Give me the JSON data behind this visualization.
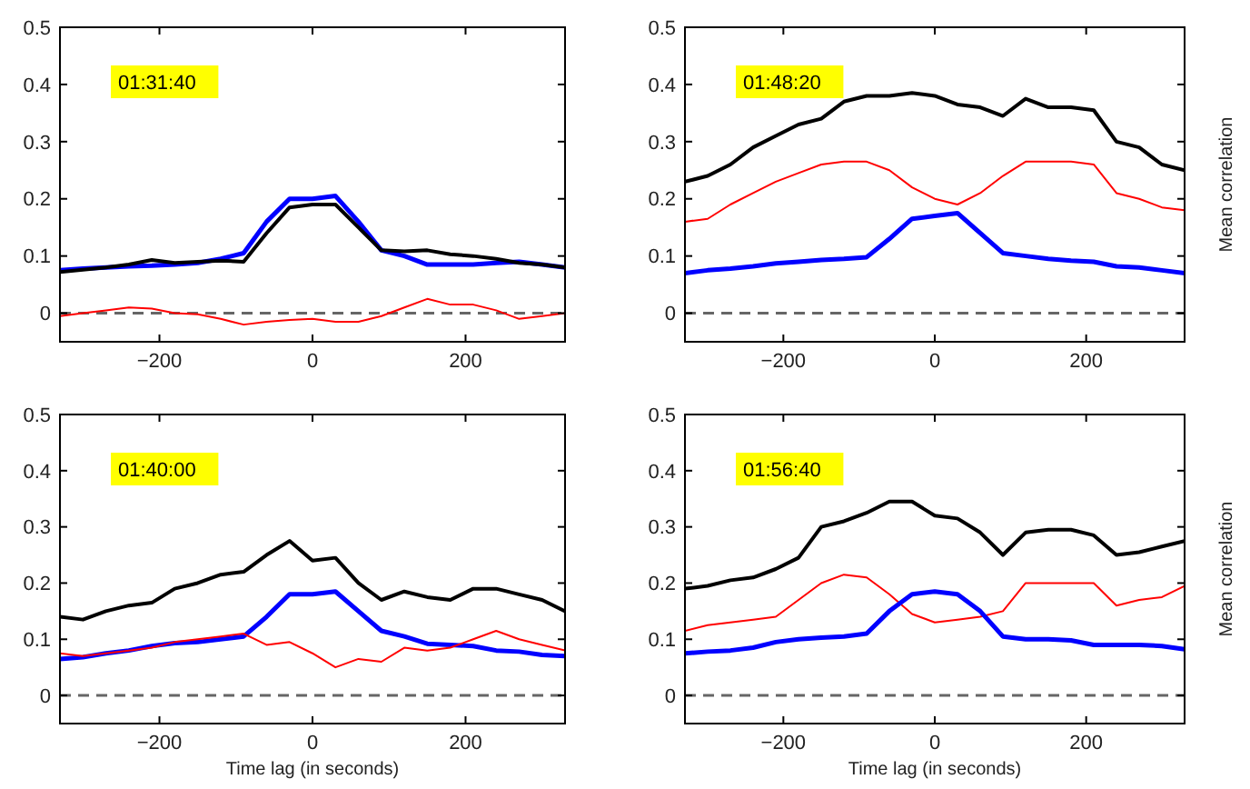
{
  "chart_data": [
    {
      "type": "line",
      "annotations": [
        "01:31:40"
      ],
      "x": [
        -330,
        -300,
        -270,
        -240,
        -210,
        -180,
        -150,
        -120,
        -90,
        -60,
        -30,
        0,
        30,
        60,
        90,
        120,
        150,
        180,
        210,
        240,
        270,
        300,
        330
      ],
      "xlim": [
        -330,
        330
      ],
      "ylim": [
        -0.05,
        0.5
      ],
      "xticks": [
        -200,
        0,
        200
      ],
      "yticks": [
        0,
        0.1,
        0.2,
        0.3,
        0.4,
        0.5
      ],
      "line_style": "solid",
      "marker": "none",
      "series": [
        {
          "color": "#0000ff",
          "values": [
            0.075,
            0.078,
            0.08,
            0.082,
            0.083,
            0.085,
            0.088,
            0.095,
            0.105,
            0.16,
            0.2,
            0.2,
            0.205,
            0.16,
            0.11,
            0.1,
            0.085,
            0.085,
            0.085,
            0.088,
            0.09,
            0.085,
            0.08
          ]
        },
        {
          "color": "#000000",
          "values": [
            0.072,
            0.076,
            0.08,
            0.085,
            0.093,
            0.088,
            0.09,
            0.092,
            0.09,
            0.14,
            0.185,
            0.19,
            0.19,
            0.15,
            0.11,
            0.108,
            0.11,
            0.103,
            0.1,
            0.095,
            0.088,
            0.085,
            0.08
          ]
        },
        {
          "color": "#ff0000",
          "values": [
            -0.005,
            0,
            0.005,
            0.01,
            0.008,
            0,
            -0.002,
            -0.01,
            -0.02,
            -0.015,
            -0.012,
            -0.01,
            -0.015,
            -0.015,
            -0.005,
            0.01,
            0.025,
            0.015,
            0.015,
            0.005,
            -0.01,
            -0.005,
            0
          ]
        }
      ],
      "ref_lines": [
        {
          "axis": "y",
          "value": 0,
          "color": "#666666",
          "line_style": "dashed"
        }
      ]
    },
    {
      "type": "line",
      "annotations": [
        "01:48:20"
      ],
      "ylabel": "Mean correlation",
      "x": [
        -330,
        -300,
        -270,
        -240,
        -210,
        -180,
        -150,
        -120,
        -90,
        -60,
        -30,
        0,
        30,
        60,
        90,
        120,
        150,
        180,
        210,
        240,
        270,
        300,
        330
      ],
      "xlim": [
        -330,
        330
      ],
      "ylim": [
        -0.05,
        0.5
      ],
      "xticks": [
        -200,
        0,
        200
      ],
      "yticks": [
        0,
        0.1,
        0.2,
        0.3,
        0.4,
        0.5
      ],
      "line_style": "solid",
      "marker": "none",
      "series": [
        {
          "color": "#000000",
          "values": [
            0.23,
            0.24,
            0.26,
            0.29,
            0.31,
            0.33,
            0.34,
            0.37,
            0.38,
            0.38,
            0.385,
            0.38,
            0.365,
            0.36,
            0.345,
            0.375,
            0.36,
            0.36,
            0.355,
            0.3,
            0.29,
            0.26,
            0.25
          ]
        },
        {
          "color": "#ff0000",
          "values": [
            0.16,
            0.165,
            0.19,
            0.21,
            0.23,
            0.245,
            0.26,
            0.265,
            0.265,
            0.25,
            0.22,
            0.2,
            0.19,
            0.21,
            0.24,
            0.265,
            0.265,
            0.265,
            0.26,
            0.21,
            0.2,
            0.185,
            0.18
          ]
        },
        {
          "color": "#0000ff",
          "values": [
            0.07,
            0.075,
            0.078,
            0.082,
            0.087,
            0.09,
            0.093,
            0.095,
            0.098,
            0.13,
            0.165,
            0.17,
            0.175,
            0.14,
            0.105,
            0.1,
            0.095,
            0.092,
            0.09,
            0.082,
            0.08,
            0.075,
            0.07
          ]
        }
      ],
      "ref_lines": [
        {
          "axis": "y",
          "value": 0,
          "color": "#666666",
          "line_style": "dashed"
        }
      ]
    },
    {
      "type": "line",
      "annotations": [
        "01:40:00"
      ],
      "xlabel": "Time lag (in seconds)",
      "x": [
        -330,
        -300,
        -270,
        -240,
        -210,
        -180,
        -150,
        -120,
        -90,
        -60,
        -30,
        0,
        30,
        60,
        90,
        120,
        150,
        180,
        210,
        240,
        270,
        300,
        330
      ],
      "xlim": [
        -330,
        330
      ],
      "ylim": [
        -0.05,
        0.5
      ],
      "xticks": [
        -200,
        0,
        200
      ],
      "yticks": [
        0,
        0.1,
        0.2,
        0.3,
        0.4,
        0.5
      ],
      "line_style": "solid",
      "marker": "none",
      "series": [
        {
          "color": "#000000",
          "values": [
            0.14,
            0.135,
            0.15,
            0.16,
            0.165,
            0.19,
            0.2,
            0.215,
            0.22,
            0.25,
            0.275,
            0.24,
            0.245,
            0.2,
            0.17,
            0.185,
            0.175,
            0.17,
            0.19,
            0.19,
            0.18,
            0.17,
            0.15
          ]
        },
        {
          "color": "#0000ff",
          "values": [
            0.065,
            0.068,
            0.075,
            0.08,
            0.088,
            0.093,
            0.095,
            0.1,
            0.105,
            0.14,
            0.18,
            0.18,
            0.185,
            0.15,
            0.115,
            0.105,
            0.092,
            0.09,
            0.088,
            0.08,
            0.078,
            0.072,
            0.07
          ]
        },
        {
          "color": "#ff0000",
          "values": [
            0.075,
            0.07,
            0.075,
            0.08,
            0.085,
            0.095,
            0.1,
            0.105,
            0.11,
            0.09,
            0.095,
            0.075,
            0.05,
            0.065,
            0.06,
            0.085,
            0.08,
            0.085,
            0.1,
            0.115,
            0.1,
            0.09,
            0.08
          ]
        }
      ],
      "ref_lines": [
        {
          "axis": "y",
          "value": 0,
          "color": "#666666",
          "line_style": "dashed"
        }
      ]
    },
    {
      "type": "line",
      "annotations": [
        "01:56:40"
      ],
      "xlabel": "Time lag (in seconds)",
      "ylabel": "Mean correlation",
      "x": [
        -330,
        -300,
        -270,
        -240,
        -210,
        -180,
        -150,
        -120,
        -90,
        -60,
        -30,
        0,
        30,
        60,
        90,
        120,
        150,
        180,
        210,
        240,
        270,
        300,
        330
      ],
      "xlim": [
        -330,
        330
      ],
      "ylim": [
        -0.05,
        0.5
      ],
      "xticks": [
        -200,
        0,
        200
      ],
      "yticks": [
        0,
        0.1,
        0.2,
        0.3,
        0.4,
        0.5
      ],
      "line_style": "solid",
      "marker": "none",
      "series": [
        {
          "color": "#000000",
          "values": [
            0.19,
            0.195,
            0.205,
            0.21,
            0.225,
            0.245,
            0.3,
            0.31,
            0.325,
            0.345,
            0.345,
            0.32,
            0.315,
            0.29,
            0.25,
            0.29,
            0.295,
            0.295,
            0.285,
            0.25,
            0.255,
            0.265,
            0.275
          ]
        },
        {
          "color": "#ff0000",
          "values": [
            0.115,
            0.125,
            0.13,
            0.135,
            0.14,
            0.17,
            0.2,
            0.215,
            0.21,
            0.18,
            0.145,
            0.13,
            0.135,
            0.14,
            0.15,
            0.2,
            0.2,
            0.2,
            0.2,
            0.16,
            0.17,
            0.175,
            0.195
          ]
        },
        {
          "color": "#0000ff",
          "values": [
            0.075,
            0.078,
            0.08,
            0.085,
            0.095,
            0.1,
            0.103,
            0.105,
            0.11,
            0.15,
            0.18,
            0.185,
            0.18,
            0.15,
            0.105,
            0.1,
            0.1,
            0.098,
            0.09,
            0.09,
            0.09,
            0.088,
            0.082
          ]
        }
      ],
      "ref_lines": [
        {
          "axis": "y",
          "value": 0,
          "color": "#666666",
          "line_style": "dashed"
        }
      ]
    }
  ]
}
